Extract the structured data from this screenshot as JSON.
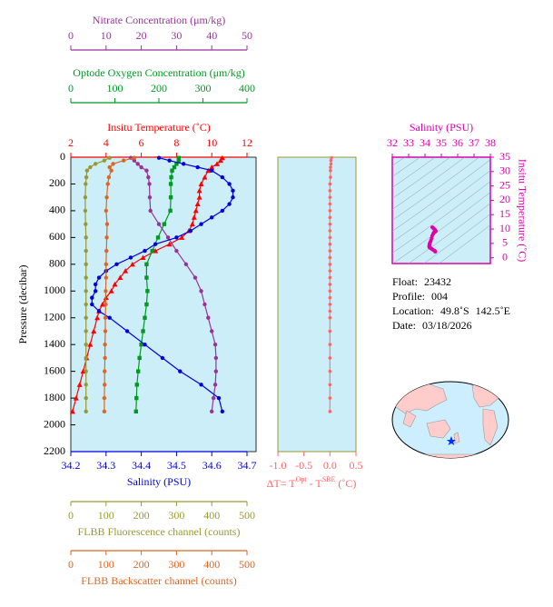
{
  "chart_data": [
    {
      "type": "profile",
      "y_label": "Pressure (decibar)",
      "ylim": [
        0,
        2200
      ],
      "y_inverted": true,
      "yticks": [
        0,
        200,
        400,
        600,
        800,
        1000,
        1200,
        1400,
        1600,
        1800,
        2000,
        2200
      ],
      "background": "#cceef8",
      "series": [
        {
          "name": "Insitu Temperature (˚C)",
          "color": "#ff0000",
          "axis": "top",
          "marker": "triangle",
          "xlim": [
            2,
            12
          ],
          "xticks": [
            2,
            4,
            6,
            8,
            10,
            12
          ],
          "y": [
            5,
            25,
            50,
            75,
            100,
            150,
            200,
            250,
            300,
            350,
            400,
            450,
            500,
            550,
            600,
            650,
            700,
            750,
            800,
            850,
            900,
            950,
            1000,
            1050,
            1100,
            1150,
            1200,
            1300,
            1400,
            1500,
            1600,
            1700,
            1800,
            1900
          ],
          "values": [
            10.6,
            10.5,
            10.3,
            10.0,
            9.8,
            9.6,
            9.4,
            9.3,
            9.3,
            9.2,
            9.1,
            9.0,
            8.9,
            8.7,
            8.3,
            7.6,
            6.8,
            6.1,
            5.5,
            5.1,
            4.8,
            4.5,
            4.3,
            4.0,
            3.8,
            3.6,
            3.5,
            3.3,
            3.1,
            2.9,
            2.7,
            2.5,
            2.3,
            2.1
          ]
        },
        {
          "name": "Optode Oxygen Concentration (μm/kg)",
          "color": "#009922",
          "axis": "top",
          "marker": "square",
          "xlim": [
            0,
            400
          ],
          "xticks": [
            0,
            100,
            200,
            300,
            400
          ],
          "y": [
            5,
            25,
            50,
            75,
            100,
            150,
            200,
            300,
            400,
            500,
            600,
            700,
            800,
            900,
            1000,
            1100,
            1200,
            1300,
            1400,
            1500,
            1600,
            1700,
            1800,
            1900
          ],
          "values": [
            245,
            245,
            240,
            235,
            230,
            228,
            227,
            227,
            226,
            212,
            198,
            185,
            172,
            172,
            174,
            172,
            168,
            164,
            160,
            156,
            153,
            150,
            149,
            148
          ]
        },
        {
          "name": "Nitrate Concentration (μm/kg)",
          "color": "#993399",
          "axis": "top",
          "marker": "circle",
          "xlim": [
            0,
            50
          ],
          "xticks": [
            0,
            10,
            20,
            30,
            40,
            50
          ],
          "y": [
            5,
            25,
            50,
            75,
            100,
            150,
            200,
            300,
            400,
            500,
            600,
            700,
            800,
            900,
            1000,
            1100,
            1200,
            1300,
            1400,
            1500,
            1600,
            1700,
            1800,
            1900
          ],
          "values": [
            17,
            18,
            19,
            20,
            21.5,
            22,
            22.3,
            22.4,
            22.6,
            25,
            27.6,
            30,
            32.7,
            35.3,
            37,
            38,
            39,
            40,
            41,
            41.2,
            41.2,
            41,
            40.5,
            40
          ]
        },
        {
          "name": "Salinity (PSU)",
          "color": "#0000dd",
          "axis": "bottom",
          "marker": "circle",
          "xlim": [
            34.2,
            34.7
          ],
          "xticks": [
            34.2,
            34.3,
            34.4,
            34.5,
            34.6,
            34.7
          ],
          "y": [
            5,
            25,
            50,
            75,
            100,
            150,
            200,
            250,
            300,
            350,
            400,
            450,
            500,
            550,
            600,
            650,
            700,
            750,
            800,
            850,
            900,
            950,
            1000,
            1050,
            1100,
            1150,
            1200,
            1300,
            1400,
            1500,
            1600,
            1700,
            1800,
            1900
          ],
          "values": [
            34.45,
            34.48,
            34.52,
            34.56,
            34.6,
            34.63,
            34.65,
            34.66,
            34.66,
            34.65,
            34.63,
            34.6,
            34.57,
            34.54,
            34.5,
            34.44,
            34.41,
            34.37,
            34.33,
            34.3,
            34.28,
            34.27,
            34.27,
            34.26,
            34.26,
            34.28,
            34.31,
            34.36,
            34.41,
            34.46,
            34.51,
            34.57,
            34.62,
            34.63
          ]
        },
        {
          "name": "FLBB Fluorescence channel (counts)",
          "color": "#999933",
          "axis": "bottom",
          "marker": "circle",
          "xlim": [
            0,
            500
          ],
          "xticks": [
            0,
            100,
            200,
            300,
            400,
            500
          ],
          "y": [
            5,
            25,
            50,
            75,
            100,
            150,
            200,
            300,
            400,
            500,
            600,
            700,
            800,
            900,
            1000,
            1100,
            1200,
            1300,
            1400,
            1500,
            1600,
            1700,
            1800,
            1900
          ],
          "values": [
            110,
            95,
            70,
            55,
            46,
            44,
            42,
            41,
            41,
            42,
            43,
            43,
            43,
            43,
            43,
            43,
            43,
            43,
            43,
            43,
            43,
            43,
            43,
            43
          ]
        },
        {
          "name": "FLBB Backscatter channel (counts)",
          "color": "#dd6622",
          "axis": "bottom",
          "marker": "circle",
          "xlim": [
            0,
            500
          ],
          "xticks": [
            0,
            100,
            200,
            300,
            400,
            500
          ],
          "y": [
            5,
            25,
            50,
            75,
            100,
            150,
            200,
            300,
            400,
            500,
            600,
            700,
            800,
            900,
            1000,
            1100,
            1200,
            1300,
            1400,
            1500,
            1600,
            1700,
            1800,
            1900
          ],
          "values": [
            180,
            150,
            120,
            110,
            115,
            108,
            105,
            102,
            100,
            103,
            102,
            101,
            100,
            100,
            99,
            99,
            98,
            98,
            97,
            97,
            96,
            96,
            95,
            95
          ]
        }
      ]
    },
    {
      "type": "line",
      "x_label": [
        "ΔT= T",
        "Opt",
        " - T",
        "SBE",
        " (˚C)"
      ],
      "color": "#ff6666",
      "background": "#cceef8",
      "xlim": [
        -1,
        0.5
      ],
      "xticks": [
        {
          "value": -1,
          "label": "-1.0"
        },
        -0.5,
        {
          "value": 0,
          "label": "0.0"
        },
        0.5
      ],
      "ylim": [
        0,
        2200
      ],
      "y": [
        5,
        25,
        50,
        75,
        100,
        150,
        200,
        250,
        300,
        350,
        400,
        450,
        500,
        550,
        600,
        650,
        700,
        750,
        800,
        850,
        900,
        950,
        1000,
        1050,
        1100,
        1150,
        1200,
        1300,
        1400,
        1500,
        1600,
        1700,
        1800,
        1900
      ],
      "values": [
        0.03,
        0.02,
        0.02,
        0.01,
        0.01,
        0.01,
        0,
        0,
        0,
        0,
        0,
        0,
        0,
        0,
        0,
        0,
        0,
        0,
        0,
        0,
        0,
        0,
        0,
        0,
        0,
        0,
        0,
        0,
        0,
        0,
        0,
        0,
        0,
        0
      ]
    },
    {
      "type": "scatter",
      "x_label": "Salinity (PSU)",
      "y_label": "Insitu Temperature (˚C)",
      "color": "#dd00aa",
      "background": "#cceef8",
      "xlim": [
        32,
        38
      ],
      "xticks": [
        32,
        33,
        34,
        35,
        36,
        37,
        38
      ],
      "ylim": [
        -2,
        35
      ],
      "yticks": [
        0,
        5,
        10,
        15,
        20,
        25,
        30,
        35
      ]
    }
  ],
  "float_info": [
    [
      "Float:",
      "23432"
    ],
    [
      "Profile:",
      "004"
    ],
    [
      "Location:",
      "49.8˚S",
      "142.5˚E"
    ],
    [
      "Date:",
      "03/18/2026"
    ]
  ]
}
